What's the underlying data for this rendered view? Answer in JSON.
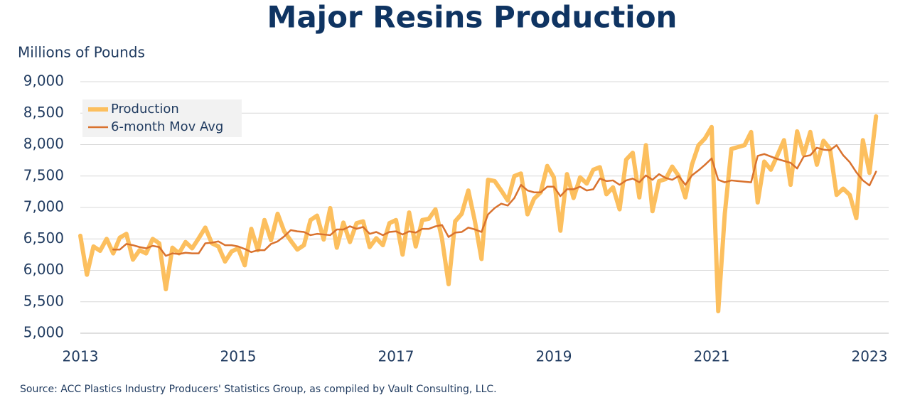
{
  "chart_data": {
    "type": "line",
    "title": "Major Resins Production",
    "y_label": "Millions of Pounds",
    "source": "Source:  ACC Plastics Industry Producers' Statistics Group, as compiled by Vault Consulting, LLC.",
    "categories": [
      "2013",
      null,
      null,
      null,
      null,
      null,
      null,
      null,
      null,
      null,
      null,
      null,
      null,
      null,
      null,
      null,
      null,
      null,
      null,
      null,
      null,
      null,
      null,
      null,
      "2015",
      null,
      null,
      null,
      null,
      null,
      null,
      null,
      null,
      null,
      null,
      null,
      null,
      null,
      null,
      null,
      null,
      null,
      null,
      null,
      null,
      null,
      null,
      null,
      "2017",
      null,
      null,
      null,
      null,
      null,
      null,
      null,
      null,
      null,
      null,
      null,
      null,
      null,
      null,
      null,
      null,
      null,
      null,
      null,
      null,
      null,
      null,
      null,
      "2019",
      null,
      null,
      null,
      null,
      null,
      null,
      null,
      null,
      null,
      null,
      null,
      null,
      null,
      null,
      null,
      null,
      null,
      null,
      null,
      null,
      null,
      null,
      null,
      "2021",
      null,
      null,
      null,
      null,
      null,
      null,
      null,
      null,
      null,
      null,
      null,
      null,
      null,
      null,
      null,
      null,
      null,
      null,
      null,
      null,
      null,
      null,
      null,
      "2023",
      null
    ],
    "series": [
      {
        "name": "Production",
        "color": "#fcbf5e",
        "values": [
          6550,
          5930,
          6380,
          6310,
          6500,
          6270,
          6520,
          6580,
          6170,
          6320,
          6270,
          6500,
          6430,
          5700,
          6360,
          6270,
          6450,
          6350,
          6510,
          6680,
          6430,
          6380,
          6140,
          6300,
          6350,
          6080,
          6660,
          6320,
          6800,
          6480,
          6900,
          6620,
          6470,
          6330,
          6400,
          6800,
          6870,
          6490,
          6990,
          6360,
          6760,
          6450,
          6750,
          6780,
          6370,
          6510,
          6400,
          6750,
          6800,
          6250,
          6920,
          6380,
          6800,
          6820,
          6970,
          6500,
          5780,
          6780,
          6900,
          7270,
          6780,
          6180,
          7440,
          7420,
          7270,
          7110,
          7500,
          7540,
          6890,
          7140,
          7240,
          7660,
          7480,
          6630,
          7530,
          7150,
          7480,
          7380,
          7600,
          7640,
          7210,
          7320,
          6970,
          7760,
          7870,
          7160,
          7990,
          6940,
          7420,
          7450,
          7650,
          7500,
          7160,
          7680,
          7990,
          8100,
          8280,
          5350,
          6900,
          7930,
          7960,
          7990,
          8200,
          7080,
          7730,
          7600,
          7830,
          8070,
          7360,
          8210,
          7840,
          8200,
          7680,
          8060,
          7930,
          7200,
          7300,
          7200,
          6830,
          8070,
          7550,
          8450
        ]
      },
      {
        "name": "6-month Mov Avg",
        "color": "#d9722e",
        "values": [
          null,
          null,
          null,
          null,
          null,
          6330,
          6330,
          6420,
          6400,
          6370,
          6350,
          6390,
          6370,
          6230,
          6270,
          6260,
          6280,
          6270,
          6270,
          6430,
          6440,
          6460,
          6400,
          6400,
          6380,
          6340,
          6290,
          6320,
          6320,
          6420,
          6460,
          6540,
          6640,
          6620,
          6610,
          6560,
          6580,
          6570,
          6560,
          6650,
          6650,
          6700,
          6660,
          6690,
          6580,
          6610,
          6560,
          6610,
          6620,
          6570,
          6620,
          6600,
          6660,
          6660,
          6700,
          6720,
          6530,
          6600,
          6610,
          6680,
          6650,
          6610,
          6890,
          6990,
          7060,
          7030,
          7150,
          7360,
          7270,
          7240,
          7240,
          7330,
          7330,
          7180,
          7290,
          7290,
          7330,
          7270,
          7290,
          7460,
          7420,
          7430,
          7360,
          7430,
          7460,
          7400,
          7510,
          7440,
          7530,
          7470,
          7440,
          7500,
          7360,
          7510,
          7590,
          7680,
          7780,
          7440,
          7400,
          7430,
          7420,
          7410,
          7400,
          7820,
          7850,
          7810,
          7770,
          7740,
          7710,
          7620,
          7810,
          7830,
          7950,
          7920,
          7910,
          7990,
          7830,
          7720,
          7560,
          7430,
          7350,
          7570
        ]
      }
    ],
    "ylim": [
      5000,
      9000
    ],
    "yticks": [
      {
        "value": 5000,
        "label": "5,000"
      },
      {
        "value": 5500,
        "label": "5,500"
      },
      {
        "value": 6000,
        "label": "6,000"
      },
      {
        "value": 6500,
        "label": "6,500"
      },
      {
        "value": 7000,
        "label": "7,000"
      },
      {
        "value": 7500,
        "label": "7,500"
      },
      {
        "value": 8000,
        "label": "8,000"
      },
      {
        "value": 8500,
        "label": "8,500"
      },
      {
        "value": 9000,
        "label": "9,000"
      }
    ],
    "grid": true,
    "legend": "upper left"
  }
}
